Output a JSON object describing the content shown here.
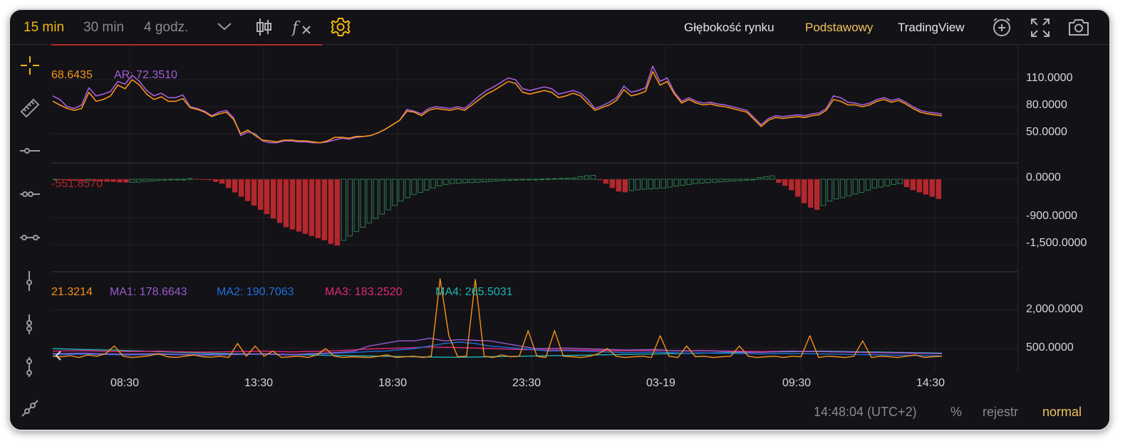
{
  "toolbar": {
    "intervals": [
      {
        "label": "15 min",
        "active": true
      },
      {
        "label": "30 min",
        "active": false
      },
      {
        "label": "4 godz.",
        "active": false
      }
    ],
    "depth_label": "Głębokość rynku",
    "basic_label": "Podstawowy",
    "tradingview_label": "TradingView"
  },
  "panes": {
    "ar": {
      "legend_prev": "68.6435",
      "legend_ar": "AR: 72.3510",
      "axis": [
        "110.0000",
        "80.0000",
        "50.0000"
      ]
    },
    "macd": {
      "legend": "-551.8570",
      "axis": [
        "0.0000",
        "-900.0000",
        "-1,500.0000"
      ]
    },
    "vol": {
      "legend_prev": "21.3214",
      "ma1_label": "MA1:",
      "ma1_value": "178.6643",
      "ma2_label": "MA2:",
      "ma2_value": "190.7063",
      "ma3_label": "MA3:",
      "ma3_value": "183.2520",
      "ma4_label": "MA4:",
      "ma4_value": "265.5031",
      "axis": [
        "2,000.0000",
        "500.0000"
      ]
    }
  },
  "time_axis": [
    "08:30",
    "13:30",
    "18:30",
    "23:30",
    "03-19",
    "09:30",
    "14:30"
  ],
  "status": {
    "clock": "14:48:04 (UTC+2)",
    "percent": "%",
    "log": "rejestr",
    "mode": "normal"
  },
  "colors": {
    "accent": "#f0b90b",
    "ar_line": "#a45fd6",
    "br_line": "#f7931a",
    "up_bar": "#2e7d4f",
    "down_bar": "#b3282d",
    "ma1": "#9b59d0",
    "ma2": "#1e6fdc",
    "ma3": "#e0287a",
    "ma4": "#20b4b4"
  },
  "chart_data": [
    {
      "type": "line",
      "title": "",
      "series": [
        {
          "name": "AR",
          "values": [
            92,
            88,
            80,
            78,
            82,
            101,
            92,
            94,
            97,
            108,
            105,
            115,
            108,
            98,
            92,
            95,
            90,
            90,
            93,
            80,
            78,
            75,
            70,
            74,
            76,
            68,
            48,
            52,
            50,
            42,
            40,
            40,
            42,
            42,
            41,
            41,
            40,
            40,
            41,
            43,
            45,
            44,
            46,
            47,
            48,
            51,
            55,
            60,
            65,
            77,
            75,
            72,
            78,
            80,
            79,
            78,
            80,
            78,
            85,
            92,
            98,
            102,
            107,
            112,
            110,
            100,
            98,
            100,
            102,
            100,
            94,
            96,
            98,
            95,
            88,
            78,
            81,
            85,
            90,
            103,
            96,
            98,
            101,
            125,
            108,
            112,
            96,
            86,
            90,
            86,
            84,
            85,
            83,
            82,
            80,
            78,
            76,
            68,
            60,
            67,
            70,
            69,
            70,
            71,
            70,
            72,
            73,
            78,
            92,
            90,
            85,
            84,
            82,
            84,
            88,
            90,
            87,
            89,
            85,
            80,
            76,
            74,
            73,
            72
          ]
        },
        {
          "name": "",
          "values": [
            86,
            82,
            78,
            76,
            78,
            96,
            86,
            88,
            92,
            104,
            100,
            110,
            104,
            94,
            88,
            91,
            86,
            86,
            89,
            79,
            77,
            74,
            69,
            72,
            74,
            66,
            50,
            54,
            48,
            43,
            42,
            41,
            43,
            43,
            42,
            42,
            41,
            40,
            42,
            46,
            46,
            45,
            47,
            47,
            48,
            51,
            55,
            60,
            65,
            75,
            74,
            70,
            76,
            78,
            77,
            76,
            78,
            76,
            82,
            88,
            94,
            98,
            103,
            108,
            106,
            96,
            94,
            96,
            98,
            96,
            90,
            92,
            95,
            92,
            84,
            76,
            79,
            82,
            87,
            99,
            92,
            94,
            97,
            119,
            104,
            108,
            94,
            84,
            88,
            84,
            82,
            83,
            81,
            80,
            78,
            76,
            74,
            66,
            58,
            65,
            68,
            67,
            68,
            69,
            68,
            70,
            71,
            76,
            88,
            86,
            82,
            82,
            80,
            82,
            86,
            88,
            85,
            87,
            83,
            78,
            74,
            72,
            71,
            70
          ]
        }
      ]
    },
    {
      "type": "bar",
      "title": "",
      "values": [
        -10,
        -20,
        -30,
        -35,
        -40,
        -40,
        -42,
        -50,
        -55,
        -60,
        -70,
        -75,
        -70,
        -65,
        -50,
        -40,
        -30,
        -20,
        -15,
        -10,
        -5,
        15,
        10,
        0,
        -20,
        -60,
        -100,
        -200,
        -300,
        -400,
        -500,
        -600,
        -700,
        -800,
        -900,
        -1000,
        -1100,
        -1150,
        -1200,
        -1250,
        -1300,
        -1350,
        -1400,
        -1480,
        -1520,
        -1400,
        -1300,
        -1200,
        -1100,
        -1000,
        -900,
        -800,
        -700,
        -600,
        -500,
        -420,
        -350,
        -300,
        -250,
        -200,
        -150,
        -120,
        -100,
        -90,
        -80,
        -75,
        -70,
        -60,
        -50,
        -40,
        -30,
        -25,
        -20,
        -15,
        -10,
        -5,
        5,
        10,
        15,
        20,
        25,
        30,
        60,
        80,
        90,
        -20,
        -100,
        -200,
        -280,
        -300,
        -260,
        -240,
        -230,
        -220,
        -210,
        -200,
        -180,
        -160,
        -140,
        -120,
        -100,
        -90,
        -80,
        -70,
        -60,
        -50,
        -40,
        -30,
        -20,
        -10,
        40,
        60,
        80,
        -80,
        -150,
        -250,
        -400,
        -550,
        -650,
        -700,
        -600,
        -500,
        -450,
        -420,
        -380,
        -340,
        -300,
        -250,
        -200,
        -180,
        -150,
        -120,
        -100,
        -180,
        -250,
        -300,
        -350,
        -400,
        -450
      ]
    },
    {
      "type": "line",
      "title": "",
      "series": [
        {
          "name": "",
          "values": [
            200,
            180,
            220,
            150,
            250,
            200,
            300,
            600,
            200,
            150,
            180,
            220,
            300,
            180,
            150,
            200,
            250,
            180,
            160,
            200,
            150,
            700,
            200,
            600,
            200,
            400,
            150,
            180,
            200,
            150,
            250,
            500,
            200,
            150,
            180,
            160,
            150,
            200,
            250,
            150,
            180,
            200,
            150,
            200,
            3700,
            1000,
            180,
            200,
            3200,
            200,
            150,
            250,
            180,
            200,
            1200,
            200,
            150,
            1200,
            200,
            180,
            150,
            200,
            300,
            500,
            200,
            150,
            180,
            200,
            150,
            1000,
            200,
            150,
            600,
            180,
            200,
            150,
            180,
            200,
            600,
            200,
            150,
            180,
            200,
            150,
            200,
            180,
            1000,
            150,
            200,
            180,
            150,
            200,
            800,
            150,
            200,
            180,
            150,
            200,
            250,
            150,
            180,
            200
          ]
        },
        {
          "name": "MA1",
          "values": [
            300,
            310,
            320,
            300,
            290,
            280,
            290,
            300,
            280,
            270,
            260,
            270,
            280,
            290,
            300,
            280,
            270,
            300,
            320,
            350,
            400,
            600,
            700,
            800,
            800,
            900,
            800,
            850,
            820,
            800,
            700,
            600,
            500,
            500,
            520,
            500,
            480,
            460,
            440,
            450,
            460,
            420,
            400,
            420,
            400,
            380,
            360,
            350,
            380,
            400,
            390,
            380,
            370,
            360,
            350,
            340,
            330,
            320,
            310,
            300
          ]
        },
        {
          "name": "MA2",
          "values": [
            260,
            270,
            280,
            270,
            260,
            250,
            260,
            270,
            260,
            250,
            240,
            250,
            260,
            270,
            280,
            260,
            250,
            280,
            300,
            320,
            350,
            380,
            400,
            450,
            500,
            600,
            700,
            750,
            700,
            600,
            550,
            500,
            450,
            400,
            420,
            400,
            380,
            360,
            340,
            350,
            360,
            340,
            320,
            330,
            320,
            310,
            300,
            290,
            300,
            310,
            300,
            290,
            280,
            270,
            260,
            250,
            240,
            230,
            220,
            210
          ]
        },
        {
          "name": "MA3",
          "values": [
            400,
            410,
            420,
            400,
            390,
            380,
            390,
            400,
            380,
            370,
            360,
            370,
            380,
            390,
            400,
            380,
            370,
            390,
            400,
            420,
            450,
            480,
            500,
            520,
            540,
            560,
            550,
            540,
            520,
            500,
            480,
            460,
            450,
            440,
            450,
            440,
            430,
            420,
            410,
            420,
            430,
            420,
            410,
            420,
            410,
            400,
            390,
            380,
            390,
            400,
            390,
            380,
            370,
            360,
            350,
            340,
            330,
            320,
            310,
            300
          ]
        },
        {
          "name": "MA4",
          "values": [
            500,
            480,
            460,
            450,
            440,
            420,
            400,
            380,
            360,
            340,
            320,
            310,
            300,
            290,
            280,
            270,
            260,
            250,
            240,
            230,
            220,
            210,
            200,
            190,
            180,
            170,
            160,
            160,
            170,
            180,
            190,
            200,
            210,
            220,
            230,
            240,
            250,
            260,
            270,
            280,
            290,
            300,
            310,
            320,
            330,
            340,
            350,
            360,
            370,
            380,
            390,
            400,
            390,
            380,
            370,
            360,
            350,
            340,
            330,
            320
          ]
        }
      ]
    }
  ]
}
